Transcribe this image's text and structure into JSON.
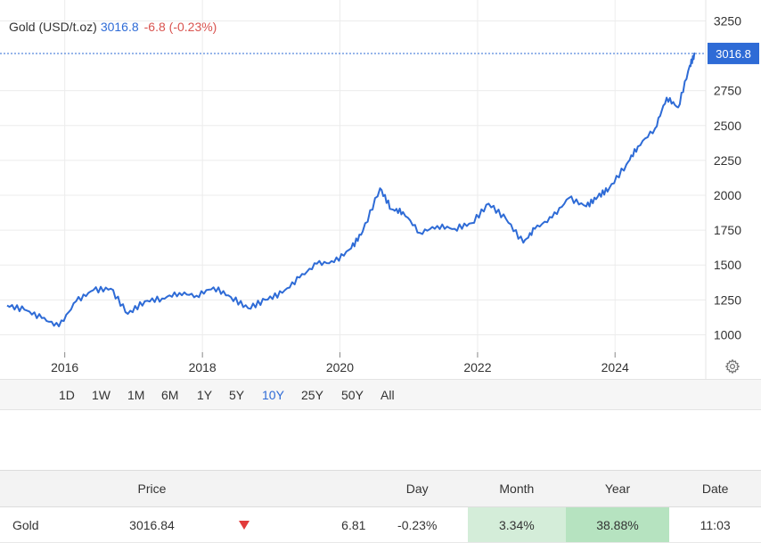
{
  "legend": {
    "name": "Gold (USD/t.oz)",
    "price": "3016.8",
    "change": "-6.8 (-0.23%)"
  },
  "price_tag": "3016.8",
  "ranges": [
    "1D",
    "1W",
    "1M",
    "6M",
    "1Y",
    "5Y",
    "10Y",
    "25Y",
    "50Y",
    "All"
  ],
  "active_range": "10Y",
  "colors": {
    "line": "#2e6bd6",
    "down": "#d9534f",
    "up_bg": "#d4edd9"
  },
  "icons": {
    "settings": "gear-icon",
    "direction": "arrow-down-icon"
  },
  "table": {
    "headers": {
      "price": "Price",
      "day": "Day",
      "month": "Month",
      "year": "Year",
      "date": "Date"
    },
    "row": {
      "name": "Gold",
      "price": "3016.84",
      "change": "6.81",
      "day": "-0.23%",
      "month": "3.34%",
      "year": "38.88%",
      "date": "11:03"
    }
  },
  "chart_data": {
    "type": "line",
    "series": [
      {
        "x": [
          "2015-03",
          "2015-06",
          "2015-09",
          "2015-12",
          "2016-03",
          "2016-06",
          "2016-09",
          "2016-12",
          "2017-03",
          "2017-06",
          "2017-09",
          "2017-12",
          "2018-03",
          "2018-06",
          "2018-09",
          "2018-12",
          "2019-03",
          "2019-06",
          "2019-09",
          "2019-12",
          "2020-03",
          "2020-05",
          "2020-08",
          "2020-10",
          "2020-12",
          "2021-03",
          "2021-06",
          "2021-09",
          "2021-12",
          "2022-03",
          "2022-06",
          "2022-09",
          "2022-11",
          "2023-02",
          "2023-05",
          "2023-08",
          "2023-10",
          "2023-12",
          "2024-03",
          "2024-05",
          "2024-08",
          "2024-10",
          "2024-12",
          "2025-02",
          "2025-03"
        ],
        "y": [
          1210,
          1180,
          1120,
          1060,
          1240,
          1320,
          1330,
          1150,
          1240,
          1260,
          1300,
          1280,
          1340,
          1270,
          1190,
          1250,
          1300,
          1410,
          1510,
          1520,
          1620,
          1740,
          2050,
          1900,
          1880,
          1730,
          1780,
          1760,
          1800,
          1940,
          1830,
          1660,
          1760,
          1840,
          1980,
          1920,
          1990,
          2050,
          2220,
          2350,
          2480,
          2700,
          2630,
          2930,
          3016.8
        ]
      }
    ],
    "x_ticks": [
      "2016",
      "2018",
      "2020",
      "2022",
      "2024"
    ],
    "y_ticks": [
      1000,
      1250,
      1500,
      1750,
      2000,
      2250,
      2500,
      2750,
      3250
    ],
    "ylim": [
      875,
      3400
    ],
    "last_value": 3016.8
  }
}
